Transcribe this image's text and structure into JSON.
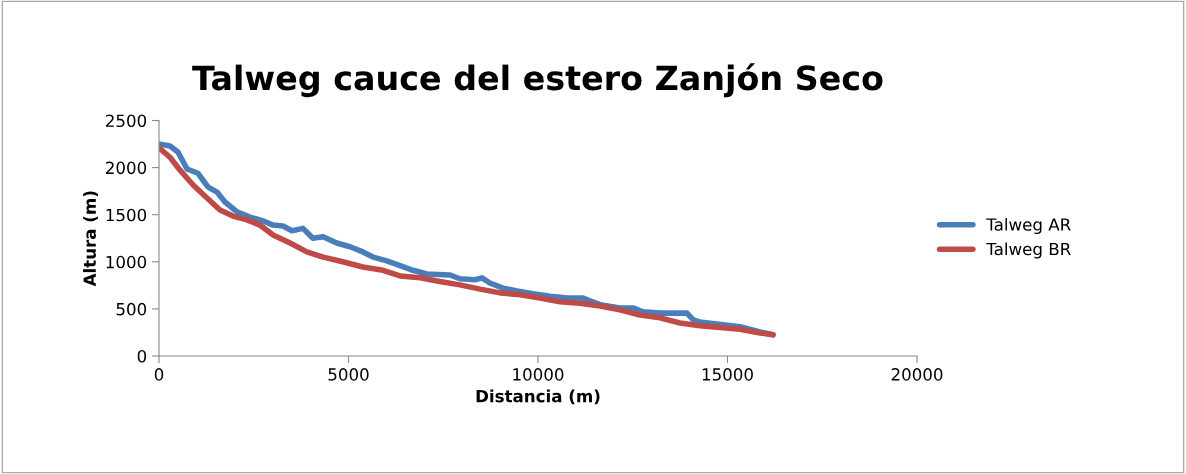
{
  "chart_data": {
    "type": "line",
    "title": "Talweg cauce del estero Zanjón Seco",
    "xlabel": "Distancia (m)",
    "ylabel": "Altura (m)",
    "xlim": [
      0,
      20000
    ],
    "xticks": [
      0,
      5000,
      10000,
      15000,
      20000
    ],
    "ylim": [
      0,
      2500
    ],
    "yticks": [
      0,
      500,
      1000,
      1500,
      2000,
      2500
    ],
    "grid": false,
    "legend": "right",
    "marker": "none",
    "line_style": "solid",
    "series": [
      {
        "name": "Talweg AR",
        "color": "#4a7ebb",
        "x": [
          0,
          290,
          500,
          740,
          1030,
          1290,
          1530,
          1740,
          2060,
          2400,
          2740,
          3010,
          3270,
          3510,
          3800,
          4060,
          4330,
          4690,
          5040,
          5380,
          5650,
          6010,
          6360,
          6700,
          7070,
          7680,
          7940,
          8340,
          8520,
          8730,
          9080,
          9450,
          9870,
          10320,
          10770,
          11190,
          11370,
          11640,
          12160,
          12510,
          12770,
          13220,
          13930,
          14090,
          14270,
          15330,
          15860,
          16200
        ],
        "values": [
          2250,
          2230,
          2165,
          1985,
          1940,
          1795,
          1740,
          1635,
          1530,
          1475,
          1435,
          1390,
          1380,
          1330,
          1355,
          1250,
          1265,
          1200,
          1160,
          1105,
          1050,
          1010,
          960,
          910,
          870,
          860,
          820,
          810,
          830,
          775,
          720,
          690,
          660,
          635,
          615,
          615,
          585,
          545,
          510,
          510,
          470,
          455,
          455,
          385,
          360,
          310,
          255,
          225
        ]
      },
      {
        "name": "Talweg BR",
        "color": "#be4b48",
        "x": [
          0,
          290,
          550,
          900,
          1260,
          1610,
          1950,
          2320,
          2660,
          3010,
          3460,
          3900,
          4330,
          4850,
          5380,
          5910,
          6360,
          6890,
          7410,
          7940,
          8470,
          9000,
          9530,
          10050,
          10580,
          11110,
          11640,
          12160,
          12690,
          13220,
          13750,
          14270,
          15330,
          15860,
          16200
        ],
        "values": [
          2210,
          2110,
          1975,
          1815,
          1680,
          1550,
          1485,
          1445,
          1390,
          1285,
          1200,
          1105,
          1050,
          1000,
          945,
          910,
          850,
          830,
          790,
          755,
          710,
          670,
          650,
          615,
          575,
          560,
          530,
          490,
          435,
          405,
          350,
          320,
          285,
          245,
          225
        ]
      }
    ]
  }
}
